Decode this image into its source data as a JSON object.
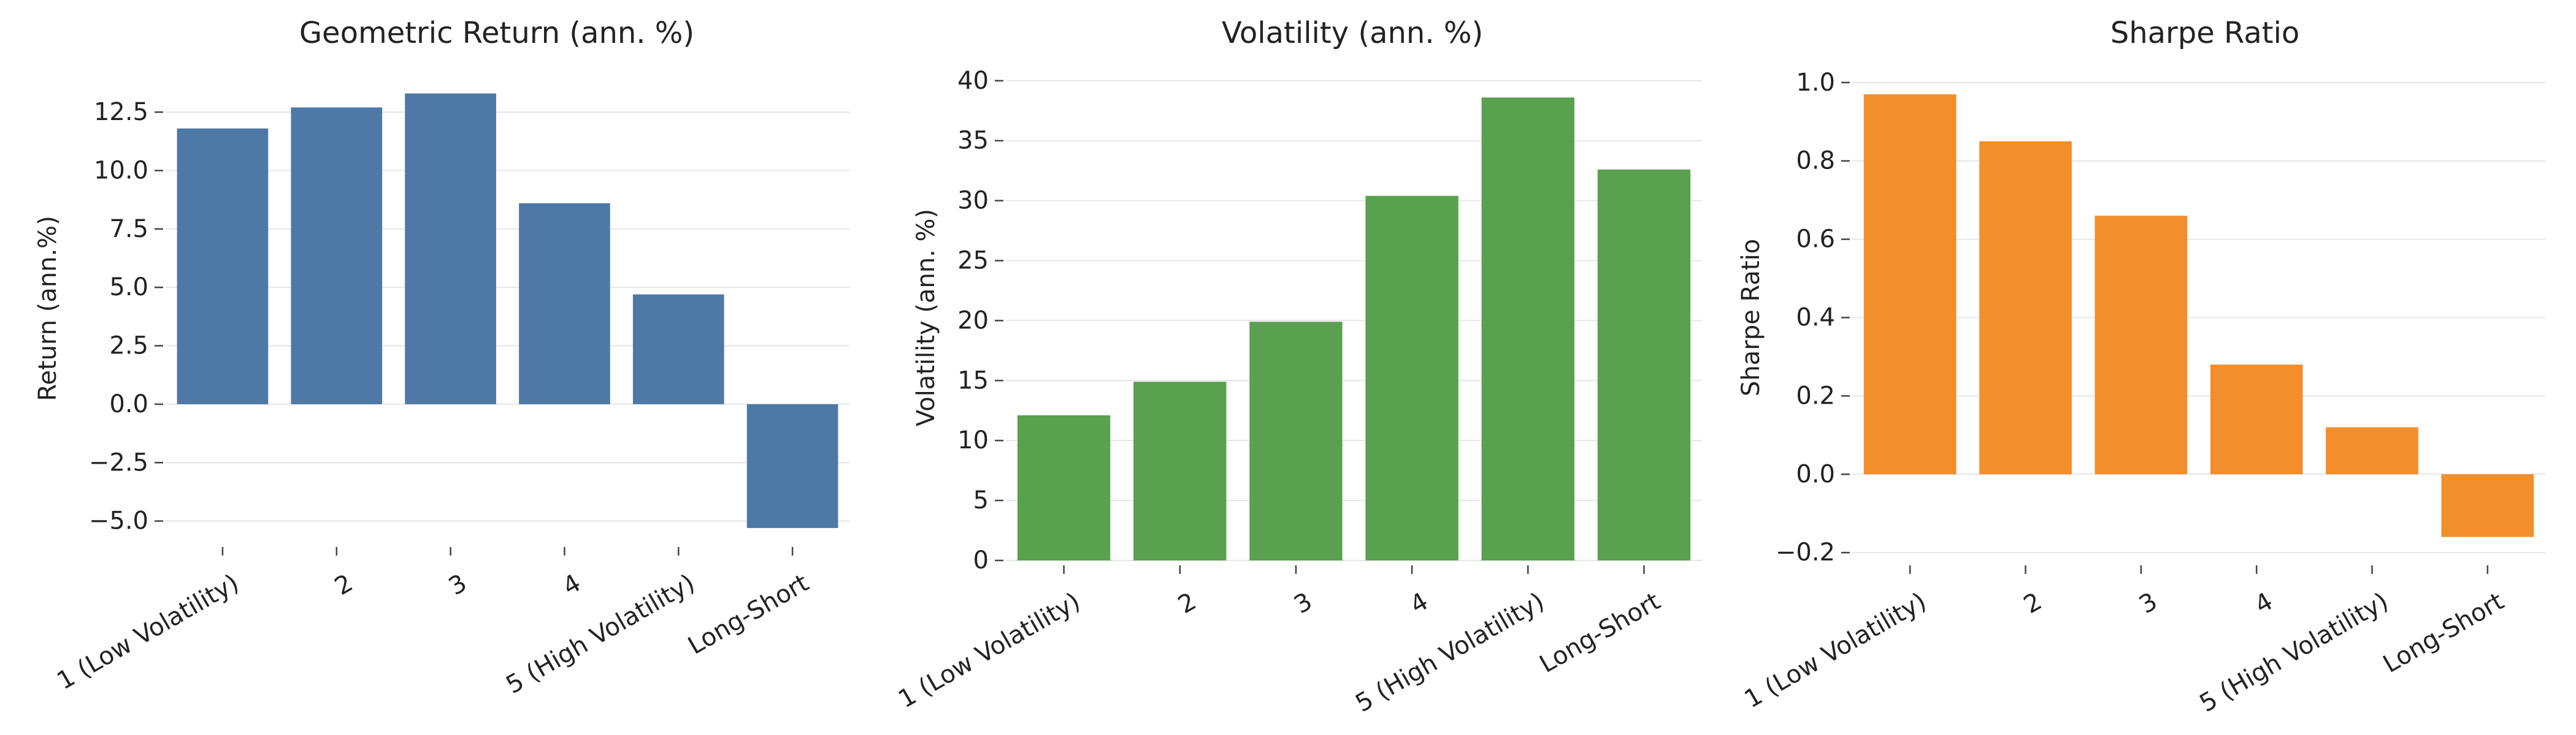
{
  "chart_data": [
    {
      "type": "bar",
      "title": "Geometric Return (ann. %)",
      "xlabel": "",
      "ylabel": "Return (ann.%)",
      "categories": [
        "1 (Low Volatility)",
        "2",
        "3",
        "4",
        "5 (High Volatility)",
        "Long-Short"
      ],
      "values": [
        11.8,
        12.7,
        13.3,
        8.6,
        4.7,
        -5.3
      ],
      "ylim": [
        -5.9,
        14.1
      ],
      "yticks": [
        -5.0,
        -2.5,
        0.0,
        2.5,
        5.0,
        7.5,
        10.0,
        12.5
      ],
      "ytick_labels": [
        "−5.0",
        "−2.5",
        "0.0",
        "2.5",
        "5.0",
        "7.5",
        "10.0",
        "12.5"
      ],
      "color": "#4e79a7",
      "grid": true,
      "legend": "none"
    },
    {
      "type": "bar",
      "title": "Volatility (ann. %)",
      "xlabel": "",
      "ylabel": "Volatility (ann. %)",
      "categories": [
        "1 (Low Volatility)",
        "2",
        "3",
        "4",
        "5 (High Volatility)",
        "Long-Short"
      ],
      "values": [
        12.1,
        14.9,
        19.9,
        30.4,
        38.6,
        32.6
      ],
      "ylim": [
        0,
        40.5
      ],
      "yticks": [
        0,
        5,
        10,
        15,
        20,
        25,
        30,
        35,
        40
      ],
      "ytick_labels": [
        "0",
        "5",
        "10",
        "15",
        "20",
        "25",
        "30",
        "35",
        "40"
      ],
      "color": "#59a14f",
      "grid": true,
      "legend": "none"
    },
    {
      "type": "bar",
      "title": "Sharpe Ratio",
      "xlabel": "",
      "ylabel": "Sharpe Ratio",
      "categories": [
        "1 (Low Volatility)",
        "2",
        "3",
        "4",
        "5 (High Volatility)",
        "Long-Short"
      ],
      "values": [
        0.97,
        0.85,
        0.66,
        0.28,
        0.12,
        -0.16
      ],
      "ylim": [
        -0.22,
        1.02
      ],
      "yticks": [
        -0.2,
        0.0,
        0.2,
        0.4,
        0.6,
        0.8,
        1.0
      ],
      "ytick_labels": [
        "−0.2",
        "0.0",
        "0.2",
        "0.4",
        "0.6",
        "0.8",
        "1.0"
      ],
      "color": "#f28e2b",
      "grid": true,
      "legend": "none"
    }
  ]
}
